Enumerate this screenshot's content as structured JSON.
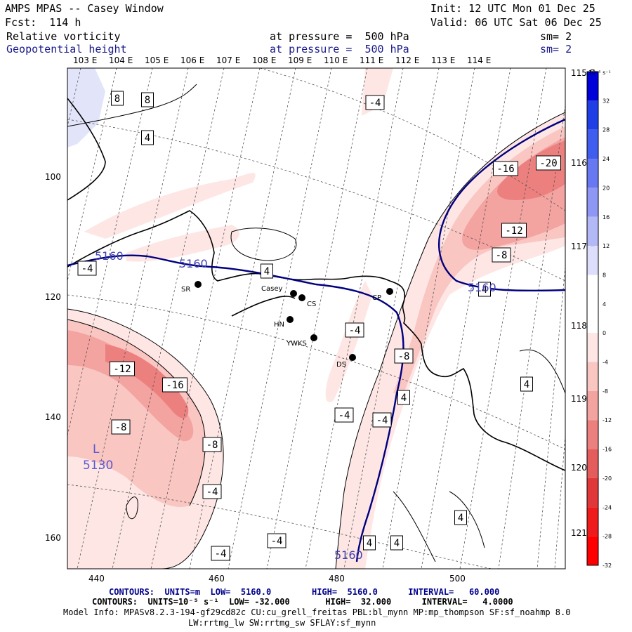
{
  "header": {
    "model_line": "AMPS MPAS -- Casey Window",
    "init_line": "Init: 12 UTC Mon 01 Dec 25",
    "fcst_line": "Fcst:  114 h",
    "valid_line": "Valid: 06 UTC Sat 06 Dec 25",
    "field1": "Relative vorticity",
    "field1_level": "at pressure =  500 hPa",
    "field1_sm": "sm= 2",
    "field2": "Geopotential height",
    "field2_level": "at pressure =  500 hPa",
    "field2_sm": "sm= 2"
  },
  "top_lon_labels": [
    "103 E",
    "104 E",
    "105 E",
    "106 E",
    "107 E",
    "108 E",
    "109 E",
    "110 E",
    "111 E",
    "112 E",
    "113 E",
    "114 E"
  ],
  "right_lon_labels": [
    "115 E",
    "116 E",
    "117 E",
    "118 E",
    "119 E",
    "120 E",
    "121 E"
  ],
  "x_ticks": [
    "440",
    "460",
    "480",
    "500"
  ],
  "y_ticks": [
    "100",
    "120",
    "140",
    "160"
  ],
  "colorbar": {
    "unit": "10⁻⁵ s⁻¹",
    "labels": [
      "32",
      "28",
      "24",
      "20",
      "16",
      "12",
      "8",
      "4",
      "0",
      "-4",
      "-8",
      "-12",
      "-16",
      "-20",
      "-24",
      "-28",
      "-32"
    ],
    "colors": [
      "#0000d8",
      "#1f3ee6",
      "#3f5ef0",
      "#6878f2",
      "#8e98f4",
      "#b3b8f7",
      "#dcdefb",
      "#ffffff",
      "#ffffff",
      "#fde6e4",
      "#f9c6c2",
      "#f3a3a0",
      "#ec807f",
      "#e55c5d",
      "#e0383a",
      "#ee1a1c",
      "#ff0000"
    ]
  },
  "stations": [
    {
      "name": "SR"
    },
    {
      "name": "Casey"
    },
    {
      "name": "CS"
    },
    {
      "name": "HN"
    },
    {
      "name": "YWKS"
    },
    {
      "name": "DS"
    },
    {
      "name": "CP"
    }
  ],
  "vort_labels": [
    "8",
    "8",
    "4",
    "-4",
    "-4",
    "4",
    "-4",
    "-16",
    "-20",
    "-12",
    "-8",
    "4",
    "-8",
    "4",
    "-12",
    "-16",
    "4",
    "-4",
    "-4",
    "-8",
    "4",
    "-8",
    "-4",
    "-4",
    "-4",
    "4",
    "4"
  ],
  "height_labels": [
    "5160",
    "5160",
    "5160",
    "5160"
  ],
  "low": {
    "letter": "L",
    "value": "5130"
  },
  "footer": {
    "contours1": "CONTOURS:  UNITS=m  LOW=  5160.0        HIGH=  5160.0      INTERVAL=   60.000",
    "contours2": "CONTOURS:  UNITS=10⁻⁵ s⁻¹  LOW= -32.000       HIGH=  32.000      INTERVAL=   4.0000",
    "model_info": "Model Info: MPASv8.2.3-194-gf29cd82c CU:cu_grell_freitas PBL:bl_mynn MP:mp_thompson SF:sf_noahmp 8.0",
    "model_info2": "LW:rrtmg_lw SW:rrtmg_sw SFLAY:sf_mynn"
  }
}
